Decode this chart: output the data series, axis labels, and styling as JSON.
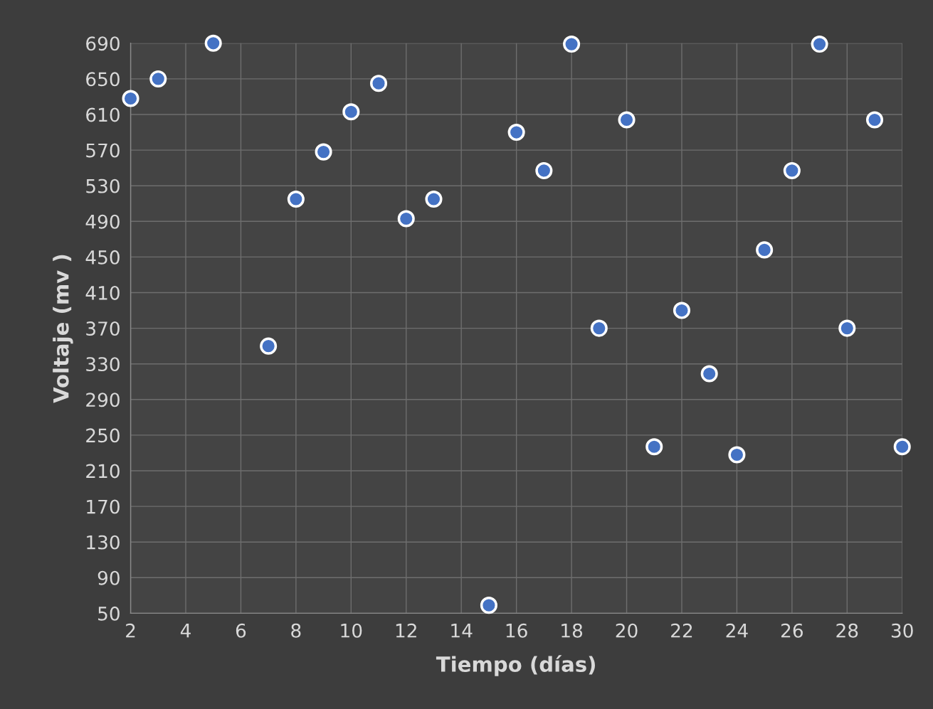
{
  "chart_data": {
    "type": "scatter",
    "xlabel": "Tiempo (días)",
    "ylabel": "Voltaje (mv )",
    "xlim": [
      2,
      30
    ],
    "ylim": [
      50,
      690
    ],
    "xticks": [
      2,
      4,
      6,
      8,
      10,
      12,
      14,
      16,
      18,
      20,
      22,
      24,
      26,
      28,
      30
    ],
    "yticks": [
      50,
      90,
      130,
      170,
      210,
      250,
      290,
      330,
      370,
      410,
      450,
      490,
      530,
      570,
      610,
      650,
      690
    ],
    "grid": true,
    "marker": "circle",
    "series": [
      {
        "color": "#4472c4",
        "x": [
          2,
          3,
          5,
          7,
          8,
          9,
          10,
          11,
          12,
          13,
          15,
          16,
          17,
          18,
          19,
          20,
          21,
          22,
          23,
          24,
          25,
          26,
          27,
          28,
          29,
          30
        ],
        "values": [
          628,
          650,
          690,
          350,
          515,
          568,
          613,
          645,
          493,
          515,
          59,
          590,
          547,
          689,
          370,
          604,
          237,
          390,
          319,
          228,
          458,
          547,
          689,
          370,
          604,
          237
        ]
      }
    ]
  }
}
